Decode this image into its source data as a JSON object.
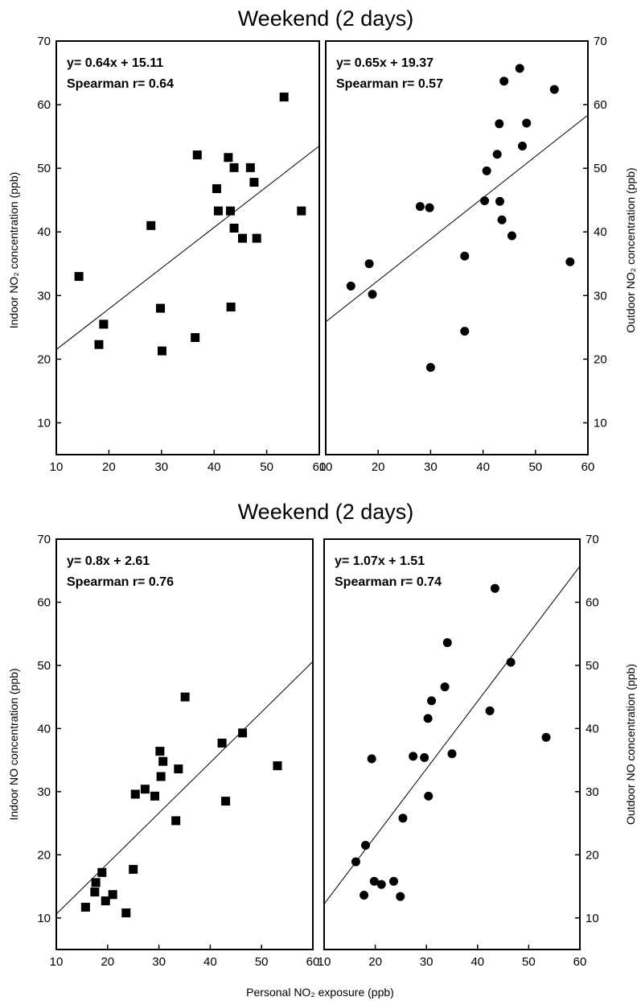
{
  "colors": {
    "marker": "#000000",
    "line": "#000000",
    "background": "#ffffff"
  },
  "xlabel_shared": "Personal NO₂ exposure (ppb)",
  "chart_data": [
    {
      "type": "scatter",
      "title": "Weekend (2 days)",
      "ylabel": "Indoor NO₂ concentration (ppb)",
      "xlim": [
        10,
        60
      ],
      "ylim": [
        5,
        70
      ],
      "xticks": [
        "10",
        "20",
        "30",
        "40",
        "50",
        "60"
      ],
      "yticks": [
        "10",
        "20",
        "30",
        "40",
        "50",
        "60",
        "70"
      ],
      "marker": "square",
      "equation": "y= 0.64x + 15.11",
      "spearman": "Spearman r= 0.64",
      "fit": {
        "slope": 0.64,
        "intercept": 15.11
      },
      "points": [
        [
          14.3,
          33
        ],
        [
          18.1,
          22.3
        ],
        [
          19,
          25.5
        ],
        [
          28,
          41
        ],
        [
          29.8,
          28
        ],
        [
          30.1,
          21.3
        ],
        [
          36.4,
          23.4
        ],
        [
          36.8,
          52.1
        ],
        [
          40.5,
          46.8
        ],
        [
          40.8,
          43.3
        ],
        [
          42.7,
          51.7
        ],
        [
          43.1,
          43.3
        ],
        [
          43.2,
          28.2
        ],
        [
          43.8,
          50.1
        ],
        [
          43.8,
          40.6
        ],
        [
          45.4,
          39
        ],
        [
          46.9,
          50.1
        ],
        [
          47.6,
          47.8
        ],
        [
          48.1,
          39
        ],
        [
          53.3,
          61.2
        ],
        [
          56.6,
          43.3
        ]
      ]
    },
    {
      "type": "scatter",
      "title": "",
      "ylabel": "Outdoor NO₂ concentration (ppb)",
      "xlim": [
        10,
        60
      ],
      "ylim": [
        5,
        70
      ],
      "xticks": [
        "10",
        "20",
        "30",
        "40",
        "50",
        "60"
      ],
      "yticks": [
        "10",
        "20",
        "30",
        "40",
        "50",
        "60",
        "70"
      ],
      "marker": "circle",
      "equation": "y= 0.65x + 19.37",
      "spearman": "Spearman r= 0.57",
      "fit": {
        "slope": 0.65,
        "intercept": 19.37
      },
      "points": [
        [
          14.8,
          31.5
        ],
        [
          18.3,
          35
        ],
        [
          18.9,
          30.2
        ],
        [
          28,
          44
        ],
        [
          29.8,
          43.8
        ],
        [
          30,
          18.7
        ],
        [
          36.5,
          36.2
        ],
        [
          36.5,
          24.4
        ],
        [
          40.3,
          44.9
        ],
        [
          40.7,
          49.6
        ],
        [
          42.7,
          52.2
        ],
        [
          43.1,
          57
        ],
        [
          43.2,
          44.8
        ],
        [
          43.6,
          41.9
        ],
        [
          44,
          63.7
        ],
        [
          45.5,
          39.4
        ],
        [
          47,
          65.7
        ],
        [
          47.5,
          53.5
        ],
        [
          48.3,
          57.1
        ],
        [
          53.6,
          62.4
        ],
        [
          56.6,
          35.3
        ]
      ]
    },
    {
      "type": "scatter",
      "title": "Weekend (2 days)",
      "ylabel": "Indoor NO  concentration (ppb)",
      "xlim": [
        10,
        60
      ],
      "ylim": [
        5,
        70
      ],
      "xticks": [
        "10",
        "20",
        "30",
        "40",
        "50",
        "60"
      ],
      "yticks": [
        "10",
        "20",
        "30",
        "40",
        "50",
        "60",
        "70"
      ],
      "marker": "square",
      "equation": "y= 0.8x + 2.61",
      "spearman": "Spearman r= 0.76",
      "fit": {
        "slope": 0.8,
        "intercept": 2.61
      },
      "points": [
        [
          15.7,
          11.7
        ],
        [
          17.5,
          14.1
        ],
        [
          17.7,
          15.6
        ],
        [
          18.9,
          17.2
        ],
        [
          19.6,
          12.7
        ],
        [
          21,
          13.7
        ],
        [
          23.6,
          10.8
        ],
        [
          25,
          17.7
        ],
        [
          25.4,
          29.6
        ],
        [
          27.3,
          30.4
        ],
        [
          29.2,
          29.3
        ],
        [
          30.2,
          36.4
        ],
        [
          30.4,
          32.4
        ],
        [
          30.8,
          34.8
        ],
        [
          33.3,
          25.4
        ],
        [
          33.8,
          33.6
        ],
        [
          35.1,
          45
        ],
        [
          42.3,
          37.7
        ],
        [
          43,
          28.5
        ],
        [
          46.3,
          39.3
        ],
        [
          53.1,
          34.1
        ]
      ]
    },
    {
      "type": "scatter",
      "title": "",
      "ylabel": "Outdoor NO  concentration (ppb)",
      "xlim": [
        10,
        60
      ],
      "ylim": [
        5,
        70
      ],
      "xticks": [
        "10",
        "20",
        "30",
        "40",
        "50",
        "60"
      ],
      "yticks": [
        "10",
        "20",
        "30",
        "40",
        "50",
        "60",
        "70"
      ],
      "marker": "circle",
      "equation": "y= 1.07x + 1.51",
      "spearman": "Spearman r= 0.74",
      "fit": {
        "slope": 1.07,
        "intercept": 1.51
      },
      "points": [
        [
          16.2,
          18.9
        ],
        [
          17.8,
          13.6
        ],
        [
          18.1,
          21.5
        ],
        [
          19.3,
          35.2
        ],
        [
          19.8,
          15.8
        ],
        [
          21.2,
          15.3
        ],
        [
          23.6,
          15.8
        ],
        [
          24.9,
          13.4
        ],
        [
          25.4,
          25.8
        ],
        [
          27.4,
          35.6
        ],
        [
          29.6,
          35.4
        ],
        [
          30.3,
          41.6
        ],
        [
          30.4,
          29.3
        ],
        [
          31,
          44.4
        ],
        [
          33.6,
          46.6
        ],
        [
          34.1,
          53.6
        ],
        [
          35,
          36
        ],
        [
          42.4,
          42.8
        ],
        [
          43.4,
          62.2
        ],
        [
          46.5,
          50.5
        ],
        [
          53.4,
          38.6
        ]
      ]
    }
  ]
}
